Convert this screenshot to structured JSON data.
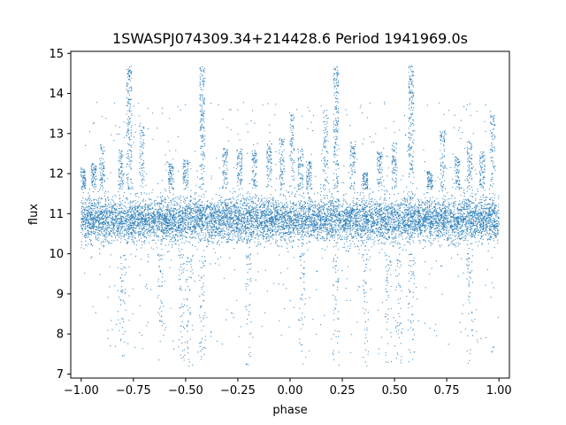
{
  "chart_data": {
    "type": "scatter",
    "title": "1SWASPJ074309.34+214428.6 Period 1941969.0s",
    "xlabel": "phase",
    "ylabel": "flux",
    "xlim": [
      -1.05,
      1.05
    ],
    "ylim": [
      6.9,
      15.05
    ],
    "xticks": [
      -1.0,
      -0.75,
      -0.5,
      -0.25,
      0.0,
      0.25,
      0.5,
      0.75,
      1.0
    ],
    "xtick_labels": [
      "−1.00",
      "−0.75",
      "−0.50",
      "−0.25",
      "0.00",
      "0.25",
      "0.50",
      "0.75",
      "1.00"
    ],
    "yticks": [
      7,
      8,
      9,
      10,
      11,
      12,
      13,
      14,
      15
    ],
    "ytick_labels": [
      "7",
      "8",
      "9",
      "10",
      "11",
      "12",
      "13",
      "14",
      "15"
    ],
    "grid": false,
    "point_color": "#1f77b4",
    "series": [
      {
        "phase_range": [
          -1.0,
          1.0
        ],
        "main_band_flux_center": 10.85,
        "main_band_flux_range": [
          10.0,
          11.6
        ],
        "outburst_flux_range": [
          11.6,
          14.7
        ],
        "dip_flux_range": [
          7.2,
          10.0
        ],
        "outburst_phases": [
          -0.99,
          -0.94,
          -0.9,
          -0.81,
          -0.77,
          -0.71,
          -0.57,
          -0.5,
          -0.42,
          -0.31,
          -0.24,
          -0.17,
          -0.1,
          -0.04,
          0.01,
          0.05,
          0.09,
          0.17,
          0.22,
          0.3,
          0.36,
          0.43,
          0.5,
          0.58,
          0.67,
          0.73,
          0.8,
          0.86,
          0.92,
          0.97
        ],
        "peak_outburst_phases": [
          -0.77,
          -0.42,
          0.22,
          0.58
        ],
        "dip_phases": [
          -0.8,
          -0.62,
          -0.52,
          -0.48,
          -0.42,
          -0.2,
          0.06,
          0.22,
          0.36,
          0.47,
          0.52,
          0.58,
          0.86
        ]
      }
    ]
  }
}
